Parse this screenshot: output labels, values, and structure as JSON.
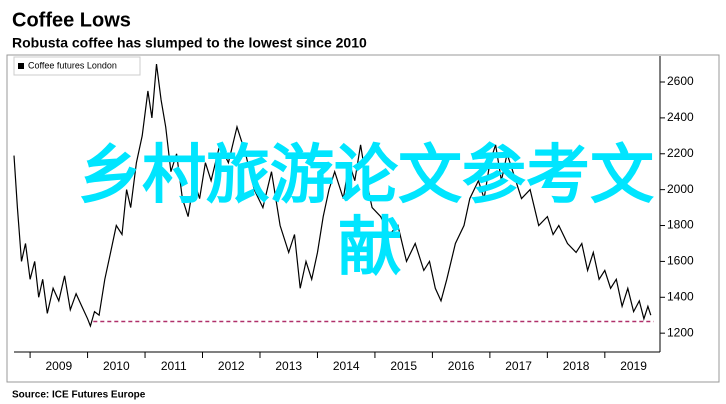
{
  "chart_data": {
    "type": "line",
    "title": "Coffee Lows",
    "subtitle": "Robusta coffee has slumped to the lowest since 2010",
    "source": "Source: ICE Futures Europe",
    "legend": "top-left",
    "grid": false,
    "overlay_text": [
      "乡村旅游论文参考文",
      "献"
    ],
    "overlay_color": "#00e5ff",
    "xlim": [
      2008.72,
      2019.96
    ],
    "xticks": [
      2009,
      2010,
      2011,
      2012,
      2013,
      2014,
      2015,
      2016,
      2017,
      2018,
      2019
    ],
    "ylim": [
      1095,
      2745
    ],
    "yticks": [
      1200,
      1400,
      1600,
      1800,
      2000,
      2200,
      2400,
      2600
    ],
    "reference_line": {
      "value": 1265,
      "x": [
        2010.1,
        2019.85
      ],
      "color": "#b0306a"
    },
    "x": [
      2008.72,
      2008.78,
      2008.85,
      2008.92,
      2009.0,
      2009.08,
      2009.15,
      2009.22,
      2009.3,
      2009.4,
      2009.5,
      2009.6,
      2009.7,
      2009.8,
      2009.9,
      2010.0,
      2010.05,
      2010.12,
      2010.2,
      2010.3,
      2010.4,
      2010.5,
      2010.6,
      2010.68,
      2010.75,
      2010.85,
      2010.95,
      2011.05,
      2011.12,
      2011.2,
      2011.28,
      2011.36,
      2011.45,
      2011.55,
      2011.65,
      2011.75,
      2011.85,
      2011.95,
      2012.05,
      2012.15,
      2012.3,
      2012.45,
      2012.6,
      2012.75,
      2012.9,
      2013.05,
      2013.2,
      2013.35,
      2013.5,
      2013.6,
      2013.7,
      2013.8,
      2013.9,
      2014.0,
      2014.1,
      2014.2,
      2014.3,
      2014.45,
      2014.55,
      2014.65,
      2014.75,
      2014.85,
      2014.95,
      2015.1,
      2015.25,
      2015.4,
      2015.55,
      2015.7,
      2015.85,
      2015.95,
      2016.05,
      2016.15,
      2016.25,
      2016.4,
      2016.55,
      2016.65,
      2016.8,
      2016.9,
      2017.0,
      2017.1,
      2017.2,
      2017.3,
      2017.4,
      2017.55,
      2017.7,
      2017.85,
      2018.0,
      2018.1,
      2018.2,
      2018.35,
      2018.5,
      2018.6,
      2018.7,
      2018.8,
      2018.9,
      2019.0,
      2019.1,
      2019.2,
      2019.3,
      2019.4,
      2019.5,
      2019.6,
      2019.68,
      2019.75,
      2019.8
    ],
    "series": [
      {
        "name": "Coffee futures London",
        "color": "#000000",
        "values": [
          2190,
          1900,
          1600,
          1700,
          1500,
          1600,
          1400,
          1500,
          1310,
          1450,
          1380,
          1520,
          1330,
          1420,
          1350,
          1280,
          1240,
          1320,
          1300,
          1500,
          1650,
          1800,
          1750,
          2000,
          1900,
          2150,
          2300,
          2550,
          2400,
          2700,
          2500,
          2350,
          2100,
          2200,
          1950,
          1850,
          2050,
          1950,
          2150,
          2050,
          2250,
          2150,
          2350,
          2200,
          2000,
          1900,
          2100,
          1800,
          1650,
          1750,
          1450,
          1600,
          1500,
          1650,
          1850,
          2000,
          2100,
          1950,
          2150,
          2050,
          2250,
          2050,
          1900,
          1850,
          1750,
          1800,
          1600,
          1700,
          1550,
          1600,
          1450,
          1380,
          1500,
          1700,
          1800,
          1950,
          2050,
          1950,
          2150,
          2250,
          2050,
          2200,
          2100,
          1950,
          2000,
          1800,
          1850,
          1750,
          1800,
          1700,
          1650,
          1700,
          1550,
          1650,
          1500,
          1550,
          1450,
          1500,
          1350,
          1450,
          1320,
          1380,
          1280,
          1350,
          1300
        ]
      }
    ]
  }
}
